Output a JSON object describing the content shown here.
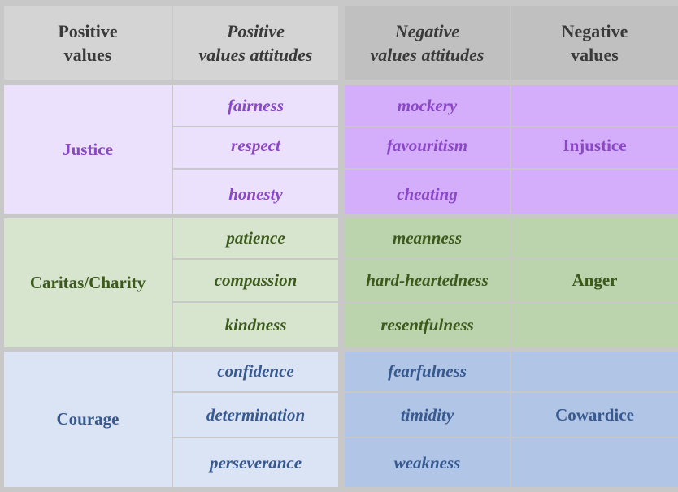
{
  "headers": {
    "positive_values": [
      "Positive",
      "values"
    ],
    "positive_attitudes": [
      "Positive",
      "values attitudes"
    ],
    "negative_attitudes": [
      "Negative",
      "values attitudes"
    ],
    "negative_values": [
      "Negative",
      "values"
    ]
  },
  "groups": [
    {
      "positive_value": "Justice",
      "positive_attitudes": [
        "fairness",
        "respect",
        "honesty"
      ],
      "negative_attitudes": [
        "mockery",
        "favouritism",
        "cheating"
      ],
      "negative_value": "Injustice",
      "colors": {
        "positive_bg": "#ebe1fd",
        "negative_bg": "#d4aefa",
        "text": "#8a48c6"
      }
    },
    {
      "positive_value": "Caritas/Charity",
      "positive_attitudes": [
        "patience",
        "compassion",
        "kindness"
      ],
      "negative_attitudes": [
        "meanness",
        "hard-heartedness",
        "resentfulness"
      ],
      "negative_value": "Anger",
      "colors": {
        "positive_bg": "#d7e4ce",
        "negative_bg": "#bcd4ad",
        "text": "#3c5a1c"
      }
    },
    {
      "positive_value": "Courage",
      "positive_attitudes": [
        "confidence",
        "determination",
        "perseverance"
      ],
      "negative_attitudes": [
        "fearfulness",
        "timidity",
        "weakness"
      ],
      "negative_value": "Cowardice",
      "colors": {
        "positive_bg": "#dbe4f5",
        "negative_bg": "#b1c6e6",
        "text": "#37598f"
      }
    }
  ]
}
